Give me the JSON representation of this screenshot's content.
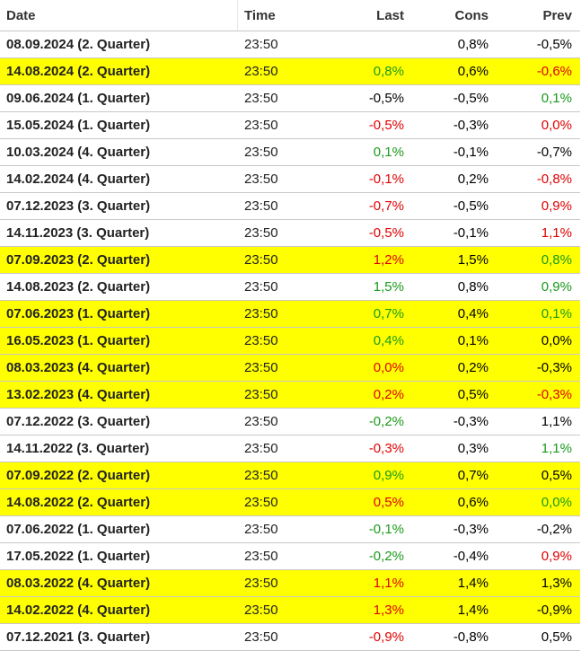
{
  "header": {
    "date": "Date",
    "time": "Time",
    "last": "Last",
    "cons": "Cons",
    "prev": "Prev"
  },
  "colors": {
    "highlight": "#ffff00",
    "positive": "#1a9a1a",
    "negative": "#e00000",
    "neutral": "#000000"
  },
  "rows": [
    {
      "date": "08.09.2024 (2. Quarter)",
      "time": "23:50",
      "last": "",
      "last_color": "neutral",
      "cons": "0,8%",
      "prev": "-0,5%",
      "prev_color": "neutral",
      "highlight": false
    },
    {
      "date": "14.08.2024 (2. Quarter)",
      "time": "23:50",
      "last": "0,8%",
      "last_color": "positive",
      "cons": "0,6%",
      "prev": "-0,6%",
      "prev_color": "negative",
      "highlight": true
    },
    {
      "date": "09.06.2024 (1. Quarter)",
      "time": "23:50",
      "last": "-0,5%",
      "last_color": "neutral",
      "cons": "-0,5%",
      "prev": "0,1%",
      "prev_color": "positive",
      "highlight": false
    },
    {
      "date": "15.05.2024 (1. Quarter)",
      "time": "23:50",
      "last": "-0,5%",
      "last_color": "negative",
      "cons": "-0,3%",
      "prev": "0,0%",
      "prev_color": "negative",
      "highlight": false
    },
    {
      "date": "10.03.2024 (4. Quarter)",
      "time": "23:50",
      "last": "0,1%",
      "last_color": "positive",
      "cons": "-0,1%",
      "prev": "-0,7%",
      "prev_color": "neutral",
      "highlight": false
    },
    {
      "date": "14.02.2024 (4. Quarter)",
      "time": "23:50",
      "last": "-0,1%",
      "last_color": "negative",
      "cons": "0,2%",
      "prev": "-0,8%",
      "prev_color": "negative",
      "highlight": false
    },
    {
      "date": "07.12.2023 (3. Quarter)",
      "time": "23:50",
      "last": "-0,7%",
      "last_color": "negative",
      "cons": "-0,5%",
      "prev": "0,9%",
      "prev_color": "negative",
      "highlight": false
    },
    {
      "date": "14.11.2023 (3. Quarter)",
      "time": "23:50",
      "last": "-0,5%",
      "last_color": "negative",
      "cons": "-0,1%",
      "prev": "1,1%",
      "prev_color": "negative",
      "highlight": false
    },
    {
      "date": "07.09.2023 (2. Quarter)",
      "time": "23:50",
      "last": "1,2%",
      "last_color": "negative",
      "cons": "1,5%",
      "prev": "0,8%",
      "prev_color": "positive",
      "highlight": true
    },
    {
      "date": "14.08.2023 (2. Quarter)",
      "time": "23:50",
      "last": "1,5%",
      "last_color": "positive",
      "cons": "0,8%",
      "prev": "0,9%",
      "prev_color": "positive",
      "highlight": false
    },
    {
      "date": "07.06.2023 (1. Quarter)",
      "time": "23:50",
      "last": "0,7%",
      "last_color": "positive",
      "cons": "0,4%",
      "prev": "0,1%",
      "prev_color": "positive",
      "highlight": true
    },
    {
      "date": "16.05.2023 (1. Quarter)",
      "time": "23:50",
      "last": "0,4%",
      "last_color": "positive",
      "cons": "0,1%",
      "prev": "0,0%",
      "prev_color": "neutral",
      "highlight": true
    },
    {
      "date": "08.03.2023 (4. Quarter)",
      "time": "23:50",
      "last": "0,0%",
      "last_color": "negative",
      "cons": "0,2%",
      "prev": "-0,3%",
      "prev_color": "neutral",
      "highlight": true
    },
    {
      "date": "13.02.2023 (4. Quarter)",
      "time": "23:50",
      "last": "0,2%",
      "last_color": "negative",
      "cons": "0,5%",
      "prev": "-0,3%",
      "prev_color": "negative",
      "highlight": true
    },
    {
      "date": "07.12.2022 (3. Quarter)",
      "time": "23:50",
      "last": "-0,2%",
      "last_color": "positive",
      "cons": "-0,3%",
      "prev": "1,1%",
      "prev_color": "neutral",
      "highlight": false
    },
    {
      "date": "14.11.2022 (3. Quarter)",
      "time": "23:50",
      "last": "-0,3%",
      "last_color": "negative",
      "cons": "0,3%",
      "prev": "1,1%",
      "prev_color": "positive",
      "highlight": false
    },
    {
      "date": "07.09.2022 (2. Quarter)",
      "time": "23:50",
      "last": "0,9%",
      "last_color": "positive",
      "cons": "0,7%",
      "prev": "0,5%",
      "prev_color": "neutral",
      "highlight": true
    },
    {
      "date": "14.08.2022 (2. Quarter)",
      "time": "23:50",
      "last": "0,5%",
      "last_color": "negative",
      "cons": "0,6%",
      "prev": "0,0%",
      "prev_color": "positive",
      "highlight": true
    },
    {
      "date": "07.06.2022 (1. Quarter)",
      "time": "23:50",
      "last": "-0,1%",
      "last_color": "positive",
      "cons": "-0,3%",
      "prev": "-0,2%",
      "prev_color": "neutral",
      "highlight": false
    },
    {
      "date": "17.05.2022 (1. Quarter)",
      "time": "23:50",
      "last": "-0,2%",
      "last_color": "positive",
      "cons": "-0,4%",
      "prev": "0,9%",
      "prev_color": "negative",
      "highlight": false
    },
    {
      "date": "08.03.2022 (4. Quarter)",
      "time": "23:50",
      "last": "1,1%",
      "last_color": "negative",
      "cons": "1,4%",
      "prev": "1,3%",
      "prev_color": "neutral",
      "highlight": true
    },
    {
      "date": "14.02.2022 (4. Quarter)",
      "time": "23:50",
      "last": "1,3%",
      "last_color": "negative",
      "cons": "1,4%",
      "prev": "-0,9%",
      "prev_color": "neutral",
      "highlight": true
    },
    {
      "date": "07.12.2021 (3. Quarter)",
      "time": "23:50",
      "last": "-0,9%",
      "last_color": "negative",
      "cons": "-0,8%",
      "prev": "0,5%",
      "prev_color": "neutral",
      "highlight": false
    }
  ]
}
